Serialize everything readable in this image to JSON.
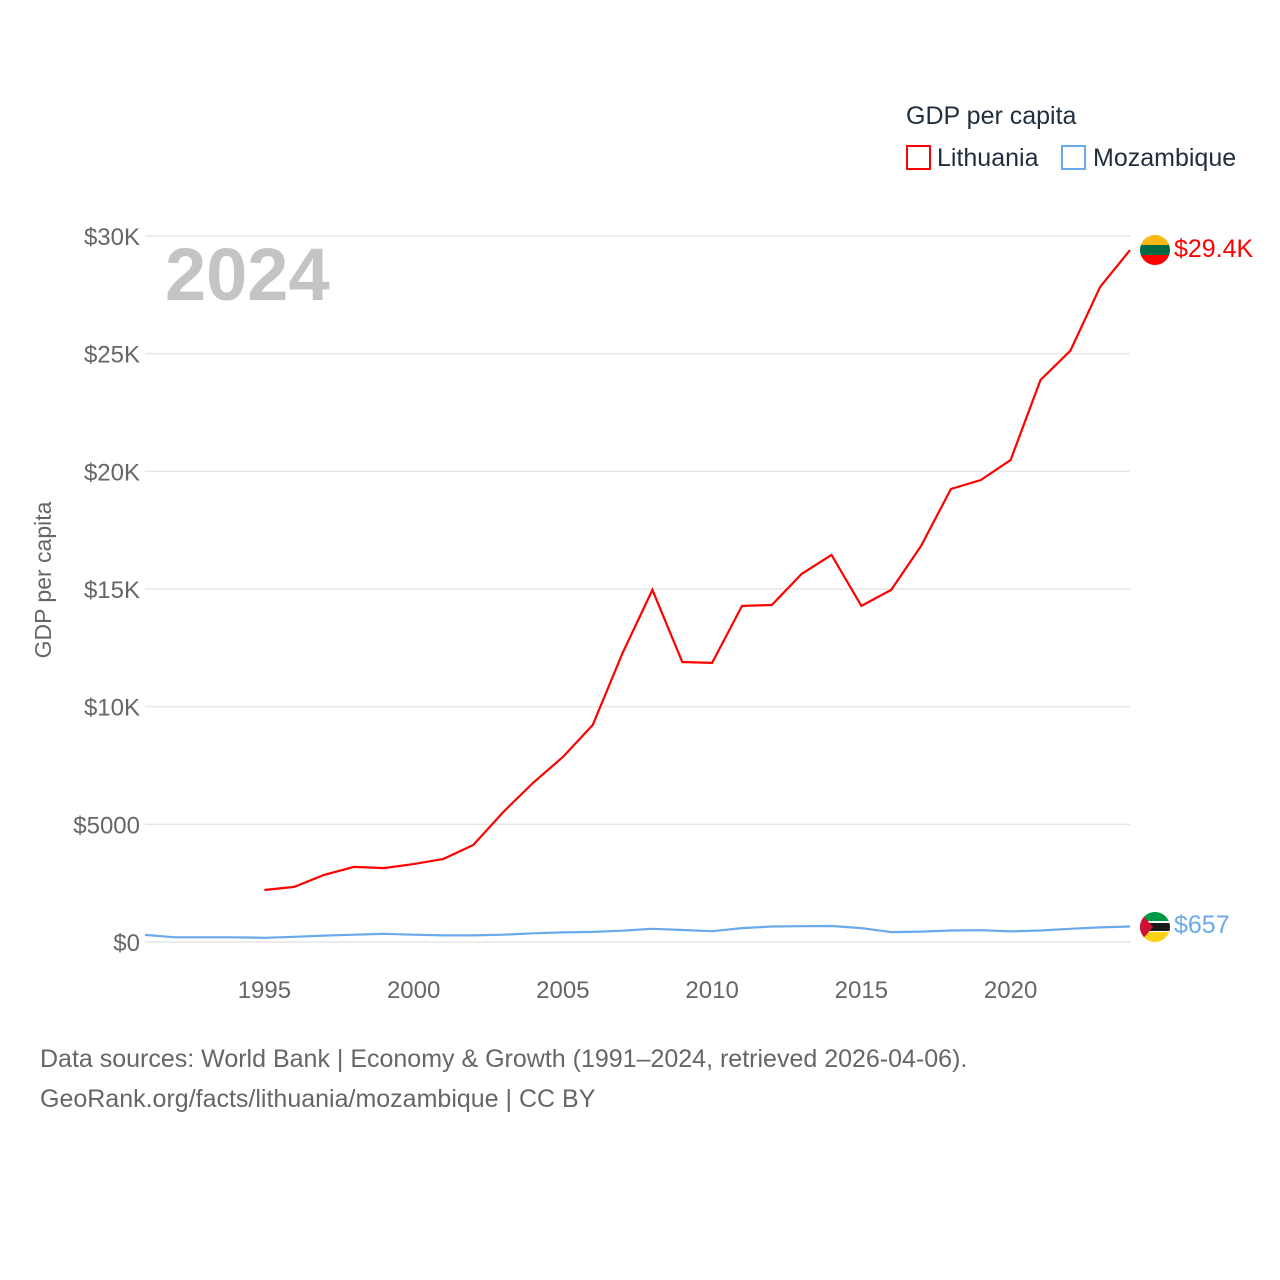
{
  "chart_data": {
    "type": "line",
    "title": "GDP per capita",
    "ylabel": "GDP per capita",
    "xlabel": "",
    "year_label": "2024",
    "xlim": [
      1991,
      2024
    ],
    "ylim": [
      0,
      30000
    ],
    "x_ticks": [
      1995,
      2000,
      2005,
      2010,
      2015,
      2020
    ],
    "y_ticks": [
      0,
      5000,
      10000,
      15000,
      20000,
      25000,
      30000
    ],
    "y_tick_labels": [
      "$0",
      "$5000",
      "$10K",
      "$15K",
      "$20K",
      "$25K",
      "$30K"
    ],
    "grid": true,
    "legend_placement": "top-right",
    "series": [
      {
        "name": "Lithuania",
        "color": "#ff0000",
        "end_label": "$29.4K",
        "x": [
          1995,
          1996,
          1997,
          1998,
          1999,
          2000,
          2001,
          2002,
          2003,
          2004,
          2005,
          2006,
          2007,
          2008,
          2009,
          2010,
          2011,
          2012,
          2013,
          2014,
          2015,
          2016,
          2017,
          2018,
          2019,
          2020,
          2021,
          2022,
          2023,
          2024
        ],
        "values": [
          2210,
          2340,
          2850,
          3190,
          3140,
          3310,
          3530,
          4120,
          5520,
          6760,
          7860,
          9220,
          12280,
          14960,
          11900,
          11860,
          14280,
          14320,
          15640,
          16450,
          14280,
          14960,
          16830,
          19250,
          19630,
          20480,
          23880,
          25120,
          27840,
          29400
        ]
      },
      {
        "name": "Mozambique",
        "color": "#6aa9ec",
        "end_label": "$657",
        "x": [
          1991,
          1992,
          1993,
          1994,
          1995,
          1996,
          1997,
          1998,
          1999,
          2000,
          2001,
          2002,
          2003,
          2004,
          2005,
          2006,
          2007,
          2008,
          2009,
          2010,
          2011,
          2012,
          2013,
          2014,
          2015,
          2016,
          2017,
          2018,
          2019,
          2020,
          2021,
          2022,
          2023,
          2024
        ],
        "values": [
          300,
          200,
          200,
          200,
          180,
          220,
          270,
          310,
          350,
          310,
          280,
          280,
          310,
          370,
          410,
          430,
          480,
          560,
          510,
          460,
          590,
          660,
          670,
          680,
          590,
          420,
          440,
          490,
          500,
          450,
          490,
          560,
          620,
          657
        ]
      }
    ]
  },
  "footer": {
    "line1": "Data sources: World Bank | Economy & Growth (1991–2024, retrieved 2026-04-06).",
    "line2": "GeoRank.org/facts/lithuania/mozambique | CC BY"
  }
}
